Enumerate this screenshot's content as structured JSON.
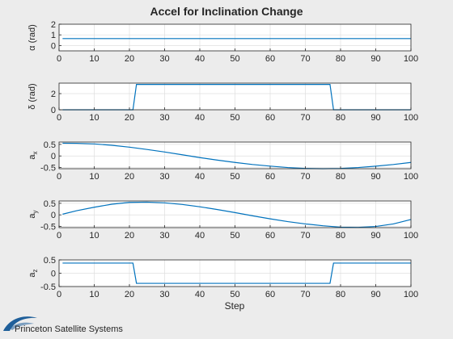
{
  "colors": {
    "figure_background": "#ececec",
    "axes_background": "#ffffff",
    "line": "#0072bd",
    "axis": "#262626",
    "grid": "#dfdfdf",
    "logo_blue": "#1f5f9a"
  },
  "figure": {
    "title": "Accel for Inclination Change",
    "xlabel": "Step"
  },
  "logo": {
    "text": "Princeton Satellite Systems",
    "icon": "swoosh-logo-icon"
  },
  "chart_data": [
    {
      "type": "line",
      "ylabel": "α (rad)",
      "xlim": [
        0,
        100
      ],
      "ylim": [
        -0.5,
        2
      ],
      "grid": true,
      "xticks": [
        0,
        10,
        20,
        30,
        40,
        50,
        60,
        70,
        80,
        90,
        100
      ],
      "yticks": [
        0,
        1,
        2
      ],
      "ytick_labels": [
        "0",
        "1",
        "2"
      ],
      "series": [
        {
          "x": [
            1,
            100
          ],
          "y": [
            0.65,
            0.65
          ]
        }
      ]
    },
    {
      "type": "line",
      "ylabel": "δ (rad)",
      "xlim": [
        0,
        100
      ],
      "ylim": [
        0,
        3.3
      ],
      "grid": true,
      "xticks": [
        0,
        10,
        20,
        30,
        40,
        50,
        60,
        70,
        80,
        90,
        100
      ],
      "yticks": [
        0,
        2
      ],
      "ytick_labels": [
        "0",
        "2"
      ],
      "series": [
        {
          "x": [
            1,
            20,
            21,
            22,
            76,
            77,
            78,
            100
          ],
          "y": [
            0,
            0,
            0,
            3.14,
            3.14,
            3.14,
            0,
            0
          ]
        }
      ]
    },
    {
      "type": "line",
      "ylabel": "a_x",
      "xlim": [
        0,
        100
      ],
      "ylim": [
        -0.55,
        0.6
      ],
      "grid": true,
      "xticks": [
        0,
        10,
        20,
        30,
        40,
        50,
        60,
        70,
        80,
        90,
        100
      ],
      "yticks": [
        -0.5,
        0,
        0.5
      ],
      "ytick_labels": [
        "-0.5",
        "0",
        "0.5"
      ],
      "series": [
        {
          "x": [
            1,
            5,
            10,
            15,
            20,
            25,
            30,
            35,
            40,
            45,
            50,
            55,
            60,
            65,
            70,
            75,
            80,
            85,
            90,
            95,
            100
          ],
          "y": [
            0.55,
            0.545,
            0.52,
            0.46,
            0.38,
            0.28,
            0.17,
            0.05,
            -0.07,
            -0.18,
            -0.28,
            -0.37,
            -0.44,
            -0.5,
            -0.54,
            -0.55,
            -0.54,
            -0.5,
            -0.44,
            -0.37,
            -0.28
          ]
        }
      ]
    },
    {
      "type": "line",
      "ylabel": "a_y",
      "xlim": [
        0,
        100
      ],
      "ylim": [
        -0.55,
        0.6
      ],
      "grid": true,
      "xticks": [
        0,
        10,
        20,
        30,
        40,
        50,
        60,
        70,
        80,
        90,
        100
      ],
      "yticks": [
        -0.5,
        0,
        0.5
      ],
      "ytick_labels": [
        "-0.5",
        "0",
        "0.5"
      ],
      "series": [
        {
          "x": [
            1,
            5,
            10,
            15,
            20,
            25,
            30,
            35,
            40,
            45,
            50,
            55,
            60,
            65,
            70,
            75,
            80,
            85,
            90,
            95,
            100
          ],
          "y": [
            0.03,
            0.18,
            0.33,
            0.46,
            0.54,
            0.55,
            0.52,
            0.45,
            0.35,
            0.23,
            0.1,
            -0.04,
            -0.17,
            -0.29,
            -0.39,
            -0.47,
            -0.53,
            -0.54,
            -0.5,
            -0.39,
            -0.2
          ]
        }
      ]
    },
    {
      "type": "line",
      "ylabel": "a_z",
      "xlim": [
        0,
        100
      ],
      "ylim": [
        -0.5,
        0.5
      ],
      "grid": true,
      "xticks": [
        0,
        10,
        20,
        30,
        40,
        50,
        60,
        70,
        80,
        90,
        100
      ],
      "yticks": [
        -0.5,
        0,
        0.5
      ],
      "ytick_labels": [
        "-0.5",
        "0",
        "0.5"
      ],
      "series": [
        {
          "x": [
            1,
            21,
            22,
            77,
            78,
            100
          ],
          "y": [
            0.38,
            0.38,
            -0.38,
            -0.38,
            0.38,
            0.38
          ]
        }
      ]
    }
  ]
}
